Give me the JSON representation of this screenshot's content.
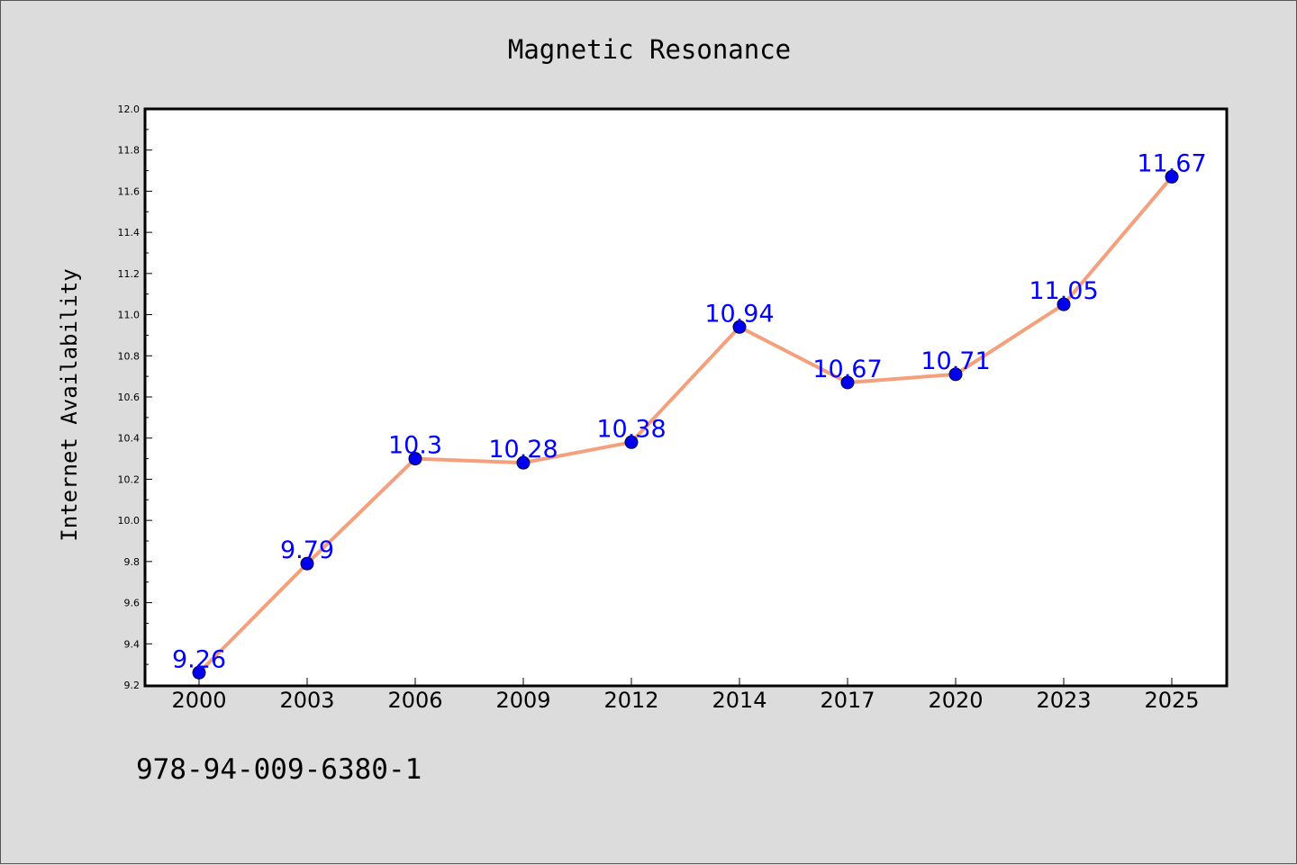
{
  "isbn": "978-94-009-6380-1",
  "chart_data": {
    "type": "line",
    "title": "Magnetic Resonance",
    "xlabel": "",
    "ylabel": "Internet Availability",
    "categories": [
      "2000",
      "2003",
      "2006",
      "2009",
      "2012",
      "2014",
      "2017",
      "2020",
      "2023",
      "2025"
    ],
    "series": [
      {
        "values": [
          9.26,
          9.79,
          10.3,
          10.28,
          10.38,
          10.94,
          10.67,
          10.71,
          11.05,
          11.67
        ],
        "labels": [
          "9.26",
          "9.79",
          "10.3",
          "10.28",
          "10.38",
          "10.94",
          "10.67",
          "10.71",
          "11.05",
          "11.67"
        ]
      }
    ],
    "ylim": [
      9.2,
      12.0
    ],
    "yticks": [
      "9.2",
      "9.4",
      "9.6",
      "9.8",
      "10.0",
      "10.2",
      "10.4",
      "10.6",
      "10.8",
      "11.0",
      "11.2",
      "11.4",
      "11.6",
      "11.8",
      "12.0"
    ],
    "grid": false,
    "colors": {
      "line": "#f4a07c",
      "marker": "#0000ee",
      "label": "#0000ff",
      "plot_bg": "#ffffff",
      "page_bg": "#dcdcdc"
    }
  }
}
